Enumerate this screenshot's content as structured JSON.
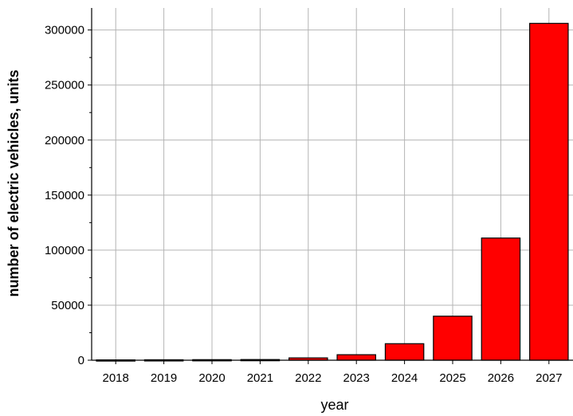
{
  "chart_data": {
    "type": "bar",
    "title": "",
    "xlabel": "year",
    "ylabel": "number of electric vehicles, units",
    "categories": [
      "2018",
      "2019",
      "2020",
      "2021",
      "2022",
      "2023",
      "2024",
      "2025",
      "2026",
      "2027"
    ],
    "values": [
      300,
      400,
      500,
      600,
      2100,
      5000,
      15000,
      40000,
      111000,
      306000
    ],
    "ylim": [
      0,
      320000
    ],
    "yticks": [
      0,
      50000,
      100000,
      150000,
      200000,
      250000,
      300000
    ],
    "ytick_labels": [
      "0",
      "50000",
      "100000",
      "150000",
      "200000",
      "250000",
      "300000"
    ],
    "grid": true,
    "bar_color": "#ff0000",
    "bar_edge_color": "#000000",
    "grid_color": "#b4b4b4"
  }
}
